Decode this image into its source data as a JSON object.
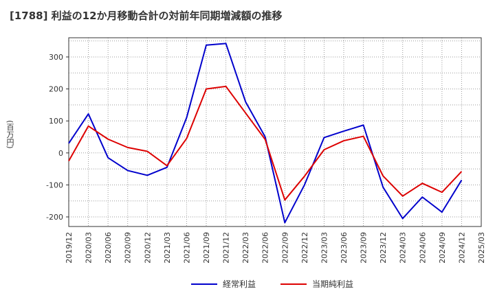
{
  "chart_data": {
    "type": "line",
    "title": "[1788]  利益の12か月移動合計の対前年同期増減額の推移",
    "ylabel": "(百万円)",
    "xlabel": "",
    "ylim": [
      -230,
      360
    ],
    "yticks": [
      300,
      200,
      100,
      0,
      -100,
      -200
    ],
    "x": [
      "2019/12",
      "2020/03",
      "2020/06",
      "2020/09",
      "2020/12",
      "2021/03",
      "2021/06",
      "2021/09",
      "2021/12",
      "2022/03",
      "2022/06",
      "2022/09",
      "2022/12",
      "2023/03",
      "2023/06",
      "2023/09",
      "2023/12",
      "2024/03",
      "2024/06",
      "2024/09",
      "2024/12",
      "2025/03"
    ],
    "series": [
      {
        "name": "経常利益",
        "color": "#0000cc",
        "values": [
          30,
          122,
          -15,
          -55,
          -70,
          -45,
          110,
          337,
          342,
          160,
          50,
          -218,
          -100,
          48,
          68,
          87,
          -107,
          -205,
          -138,
          -185,
          -85,
          null
        ]
      },
      {
        "name": "当期純利益",
        "color": "#dd0000",
        "values": [
          -25,
          84,
          43,
          17,
          5,
          -40,
          45,
          200,
          208,
          125,
          42,
          -147,
          -73,
          10,
          38,
          52,
          -72,
          -135,
          -95,
          -123,
          -58,
          null
        ]
      }
    ]
  }
}
